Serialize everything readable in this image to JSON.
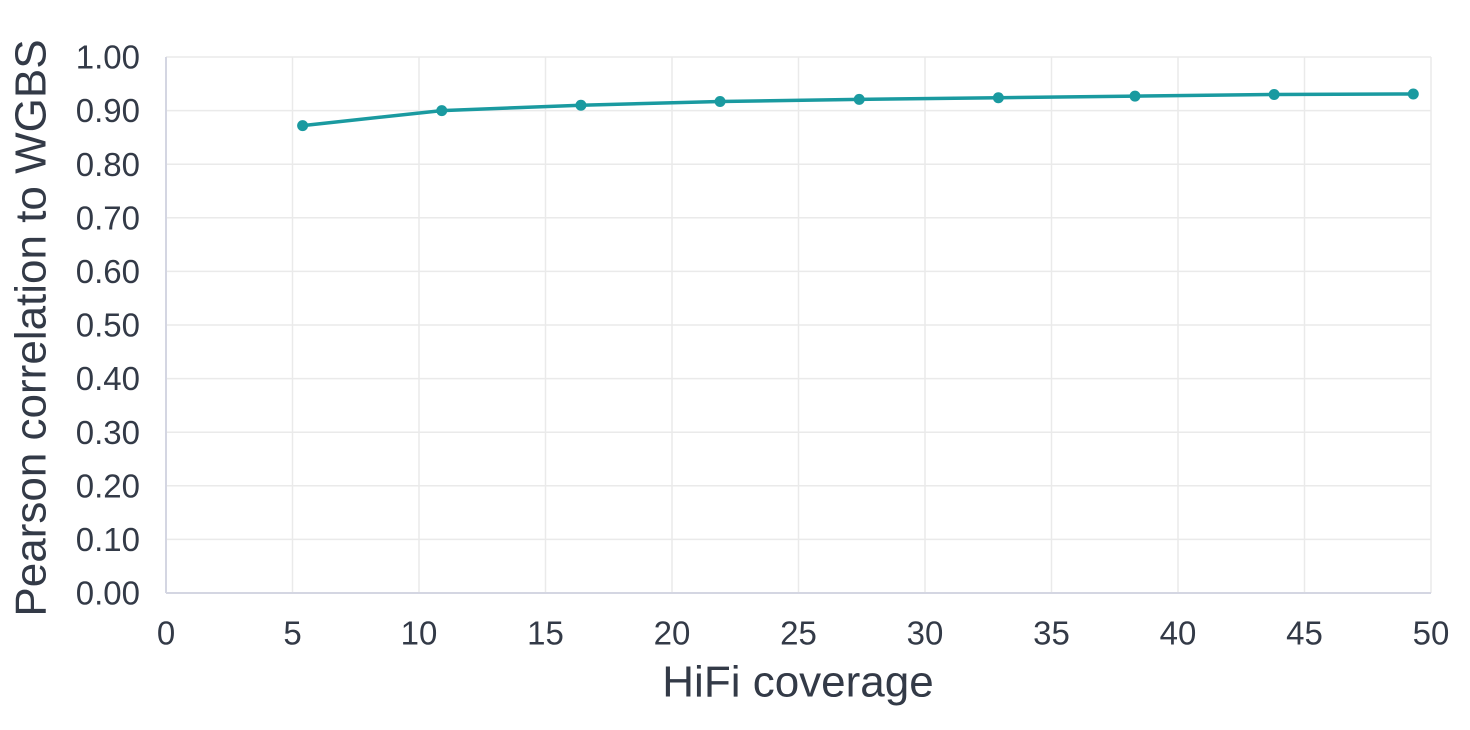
{
  "chart_data": {
    "type": "line",
    "title": "",
    "xlabel": "HiFi coverage",
    "ylabel": "Pearson correlation to WGBS",
    "xlim": [
      0,
      50
    ],
    "ylim": [
      0.0,
      1.0
    ],
    "xticks": [
      0,
      5,
      10,
      15,
      20,
      25,
      30,
      35,
      40,
      45,
      50
    ],
    "ytick_labels": [
      "0.00",
      "0.10",
      "0.20",
      "0.30",
      "0.40",
      "0.50",
      "0.60",
      "0.70",
      "0.80",
      "0.90",
      "1.00"
    ],
    "grid": true,
    "legend_position": "none",
    "series": [
      {
        "marker": "circle",
        "color": "#1a9aa0",
        "x": [
          5.4,
          10.9,
          16.4,
          21.9,
          27.4,
          32.9,
          38.3,
          43.8,
          49.3
        ],
        "y": [
          0.872,
          0.9,
          0.91,
          0.917,
          0.921,
          0.924,
          0.927,
          0.93,
          0.931
        ]
      }
    ],
    "colors": {
      "series_line": "#1a9aa0",
      "text": "#333a47",
      "gridline": "#eaeaea",
      "axis_line": "#d4d6e2",
      "background": "#ffffff"
    }
  }
}
